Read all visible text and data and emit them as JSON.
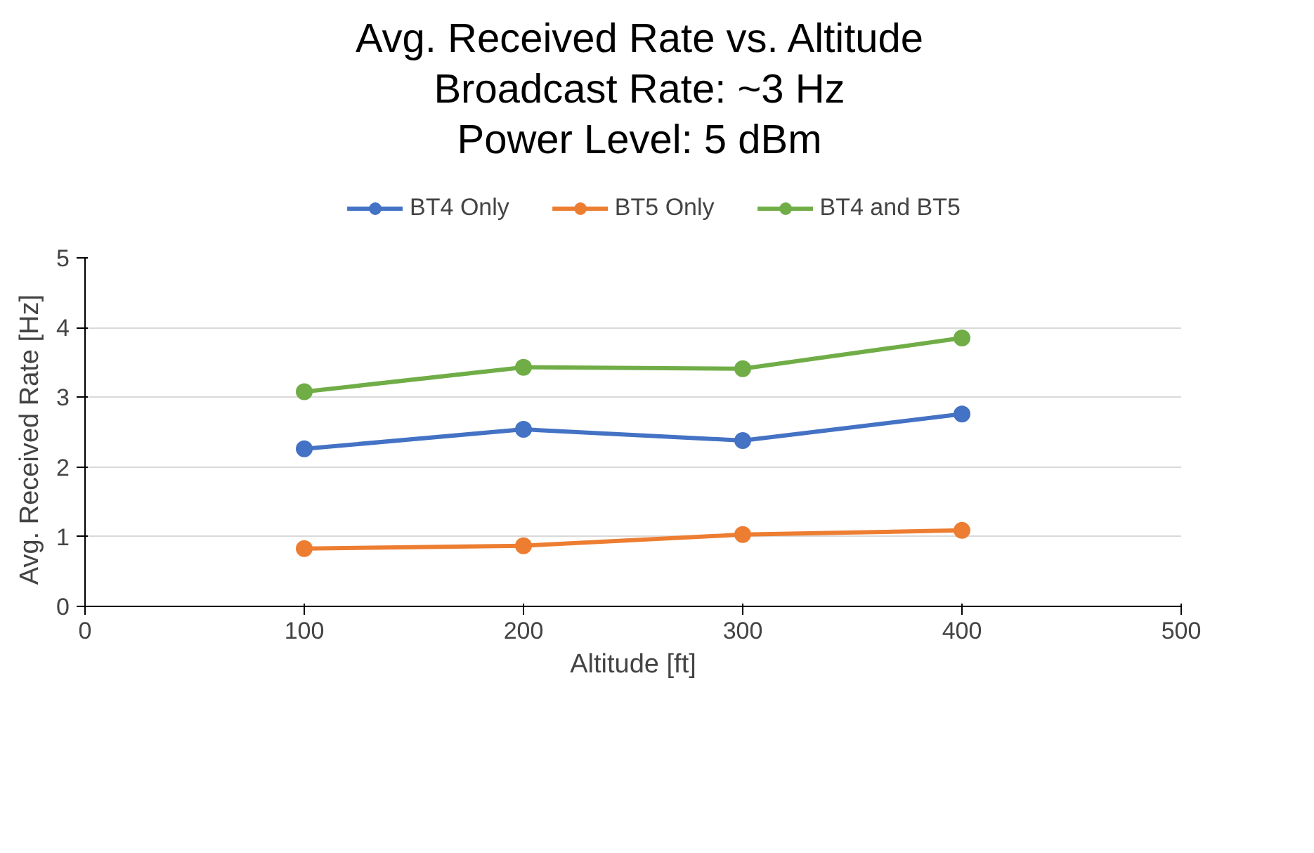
{
  "chart_data": {
    "type": "line",
    "title": "Avg. Received Rate vs. Altitude\nBroadcast Rate: ~3 Hz\nPower Level: 5 dBm",
    "xlabel": "Altitude [ft]",
    "ylabel": "Avg. Received  Rate  [Hz]",
    "x": [
      100,
      200,
      300,
      400
    ],
    "series": [
      {
        "name": "BT4 Only",
        "color": "#4472c4",
        "values": [
          2.26,
          2.54,
          2.38,
          2.76
        ]
      },
      {
        "name": "BT5 Only",
        "color": "#ed7d31",
        "values": [
          0.83,
          0.87,
          1.03,
          1.09
        ]
      },
      {
        "name": "BT4 and BT5",
        "color": "#70ad47",
        "values": [
          3.08,
          3.43,
          3.41,
          3.85
        ]
      }
    ],
    "xlim": [
      0,
      500
    ],
    "xticks": [
      0,
      100,
      200,
      300,
      400,
      500
    ],
    "ylim": [
      0,
      5
    ],
    "yticks": [
      0,
      1,
      2,
      3,
      4,
      5
    ],
    "grid": "y",
    "legend": "top",
    "marker": "circle",
    "line_style": "solid"
  }
}
